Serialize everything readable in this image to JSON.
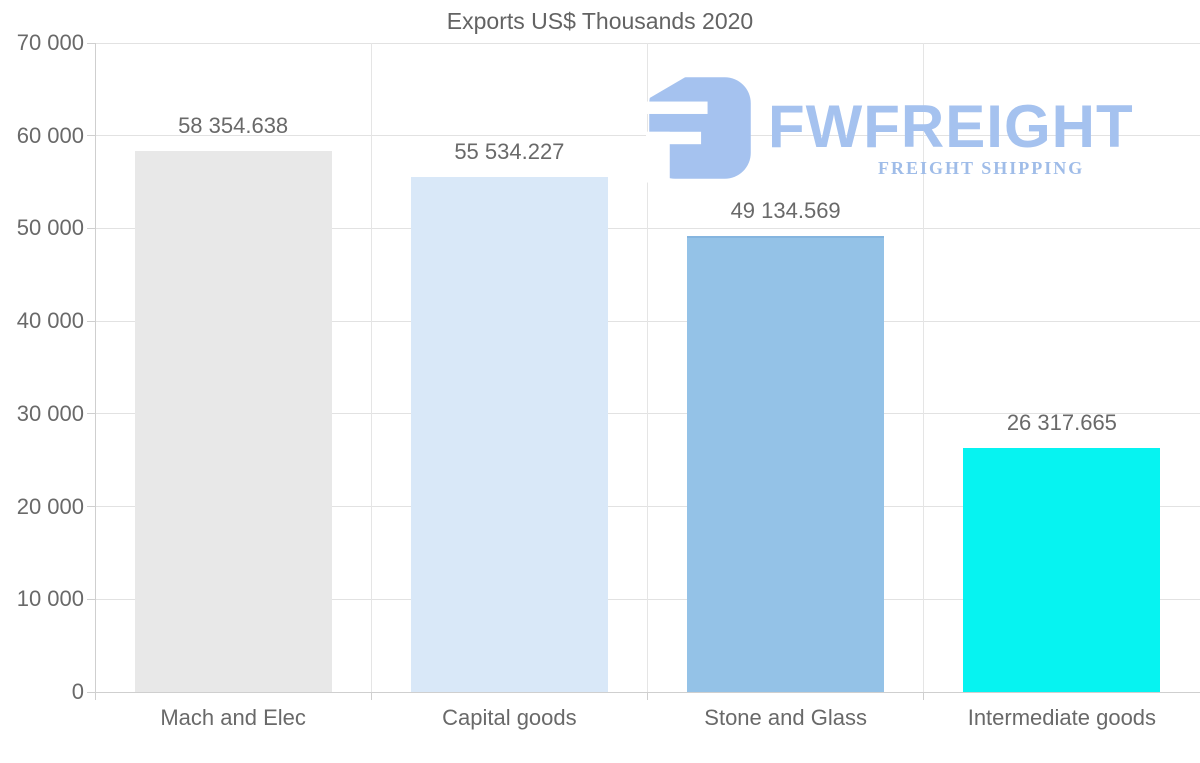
{
  "chart_data": {
    "type": "bar",
    "title": "Exports US$ Thousands 2020",
    "categories": [
      "Mach and Elec",
      "Capital goods",
      "Stone and Glass",
      "Intermediate goods"
    ],
    "values": [
      58354.638,
      55534.227,
      49134.569,
      26317.665
    ],
    "value_labels": [
      "58 354.638",
      "55 534.227",
      "49 134.569",
      "26 317.665"
    ],
    "bar_colors": [
      "#e8e8e8",
      "#d9e8f8",
      "#94c2e7",
      "#06f3f1"
    ],
    "bar_top_borders": [
      null,
      null,
      "#85b5df",
      null
    ],
    "xlabel": "",
    "ylabel": "",
    "ylim": [
      0,
      70000
    ],
    "yticks": [
      0,
      10000,
      20000,
      30000,
      40000,
      50000,
      60000,
      70000
    ],
    "ytick_labels": [
      "0",
      "10 000",
      "20 000",
      "30 000",
      "40 000",
      "50 000",
      "60 000",
      "70 000"
    ],
    "grid": true,
    "legend": "none",
    "gridline_color": "#e2e2e2",
    "axis_color": "#cfcfcf",
    "text_color": "#696969"
  },
  "logo": {
    "name": "FWFREIGHT",
    "tagline": "FREIGHT SHIPPING",
    "color": "#a5c2ef",
    "glyph": "fwfreight-monogram"
  }
}
